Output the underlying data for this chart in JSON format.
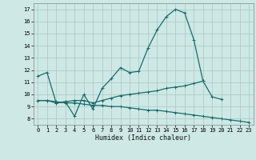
{
  "xlabel": "Humidex (Indice chaleur)",
  "bg_color": "#cde8e5",
  "grid_color": "#a8c8c5",
  "line_color": "#1a6b6b",
  "xlim": [
    -0.5,
    23.5
  ],
  "ylim": [
    7.5,
    17.5
  ],
  "xticks": [
    0,
    1,
    2,
    3,
    4,
    5,
    6,
    7,
    8,
    9,
    10,
    11,
    12,
    13,
    14,
    15,
    16,
    17,
    18,
    19,
    20,
    21,
    22,
    23
  ],
  "yticks": [
    8,
    9,
    10,
    11,
    12,
    13,
    14,
    15,
    16,
    17
  ],
  "line1_x": [
    0,
    1,
    2,
    3,
    4,
    5,
    6,
    7,
    8,
    9,
    10,
    11,
    12,
    13,
    14,
    15,
    16,
    17,
    18,
    19,
    20
  ],
  "line1_y": [
    11.5,
    11.8,
    9.3,
    9.4,
    8.2,
    10.0,
    8.8,
    10.5,
    11.3,
    12.2,
    11.8,
    11.9,
    13.8,
    15.3,
    16.4,
    17.0,
    16.7,
    14.5,
    11.1,
    9.8,
    9.6
  ],
  "line2_x": [
    0,
    1,
    2,
    3,
    4,
    5,
    6,
    7,
    8,
    9,
    10,
    11,
    12,
    13,
    14,
    15,
    16,
    17,
    18
  ],
  "line2_y": [
    9.5,
    9.5,
    9.3,
    9.4,
    9.5,
    9.5,
    9.3,
    9.5,
    9.7,
    9.9,
    10.0,
    10.1,
    10.2,
    10.3,
    10.5,
    10.6,
    10.7,
    10.9,
    11.1
  ],
  "line3_x": [
    0,
    1,
    2,
    3,
    4,
    5,
    6,
    7,
    8,
    9,
    10,
    11,
    12,
    13,
    14,
    15,
    16,
    17,
    18,
    19,
    20,
    21,
    22,
    23
  ],
  "line3_y": [
    9.5,
    9.5,
    9.4,
    9.3,
    9.3,
    9.2,
    9.1,
    9.1,
    9.0,
    9.0,
    8.9,
    8.8,
    8.7,
    8.7,
    8.6,
    8.5,
    8.4,
    8.3,
    8.2,
    8.1,
    8.0,
    7.9,
    7.8,
    7.7
  ],
  "marker": "+"
}
